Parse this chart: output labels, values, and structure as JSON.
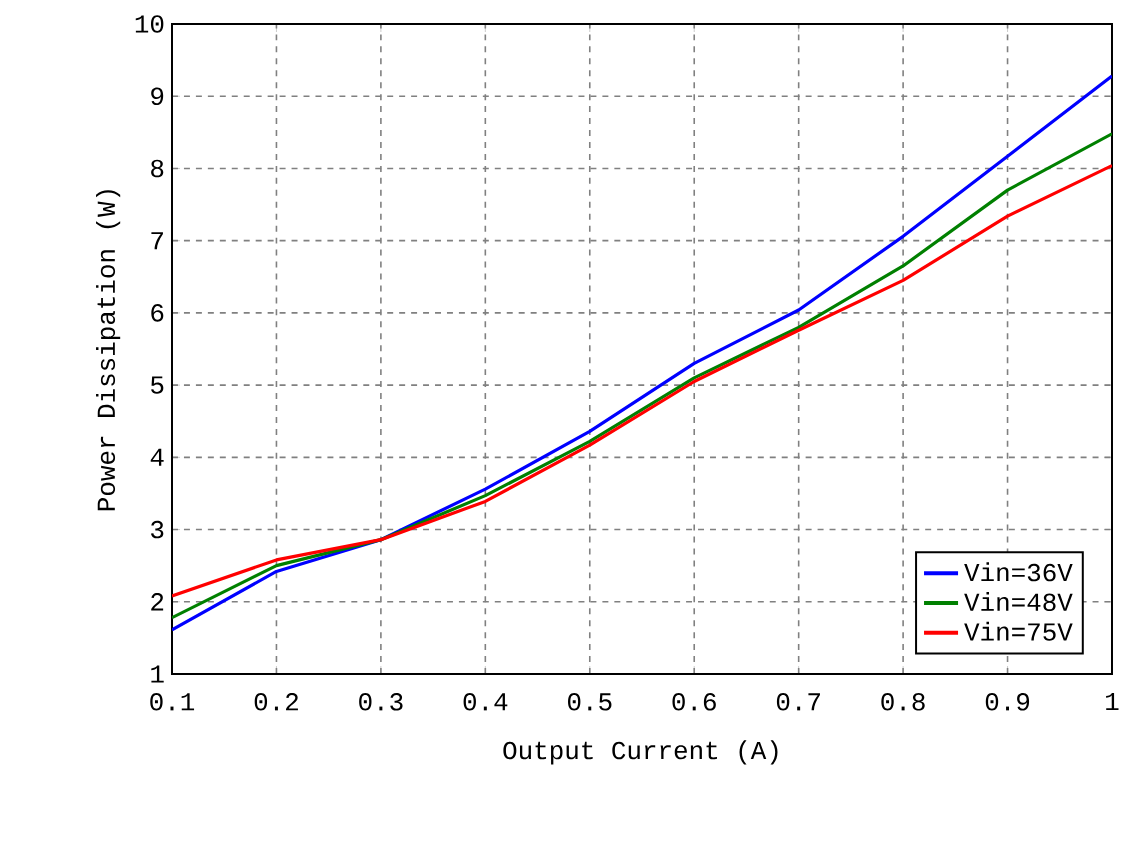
{
  "chart_data": {
    "type": "line",
    "xlabel": "Output Current (A)",
    "ylabel": "Power Dissipation (W)",
    "x": [
      0.1,
      0.2,
      0.3,
      0.4,
      0.5,
      0.6,
      0.7,
      0.8,
      0.9,
      1.0
    ],
    "series": [
      {
        "name": "Vin=36V",
        "color": "#0000ff",
        "values": [
          1.61,
          2.42,
          2.86,
          3.56,
          4.36,
          5.3,
          6.04,
          7.06,
          8.17,
          9.28
        ]
      },
      {
        "name": "Vin=48V",
        "color": "#008000",
        "values": [
          1.78,
          2.5,
          2.86,
          3.47,
          4.22,
          5.1,
          5.8,
          6.65,
          7.7,
          8.48
        ]
      },
      {
        "name": "Vin=75V",
        "color": "#ff0000",
        "values": [
          2.08,
          2.58,
          2.86,
          3.39,
          4.17,
          5.05,
          5.76,
          6.45,
          7.34,
          8.04
        ]
      }
    ],
    "xlim": [
      0.1,
      1
    ],
    "ylim": [
      1,
      10
    ],
    "xticks": [
      0.1,
      0.2,
      0.3,
      0.4,
      0.5,
      0.6,
      0.7,
      0.8,
      0.9,
      1
    ],
    "yticks": [
      1,
      2,
      3,
      4,
      5,
      6,
      7,
      8,
      9,
      10
    ],
    "grid": true,
    "legend": "bottom right",
    "marker": "none",
    "line_style": "solid"
  }
}
